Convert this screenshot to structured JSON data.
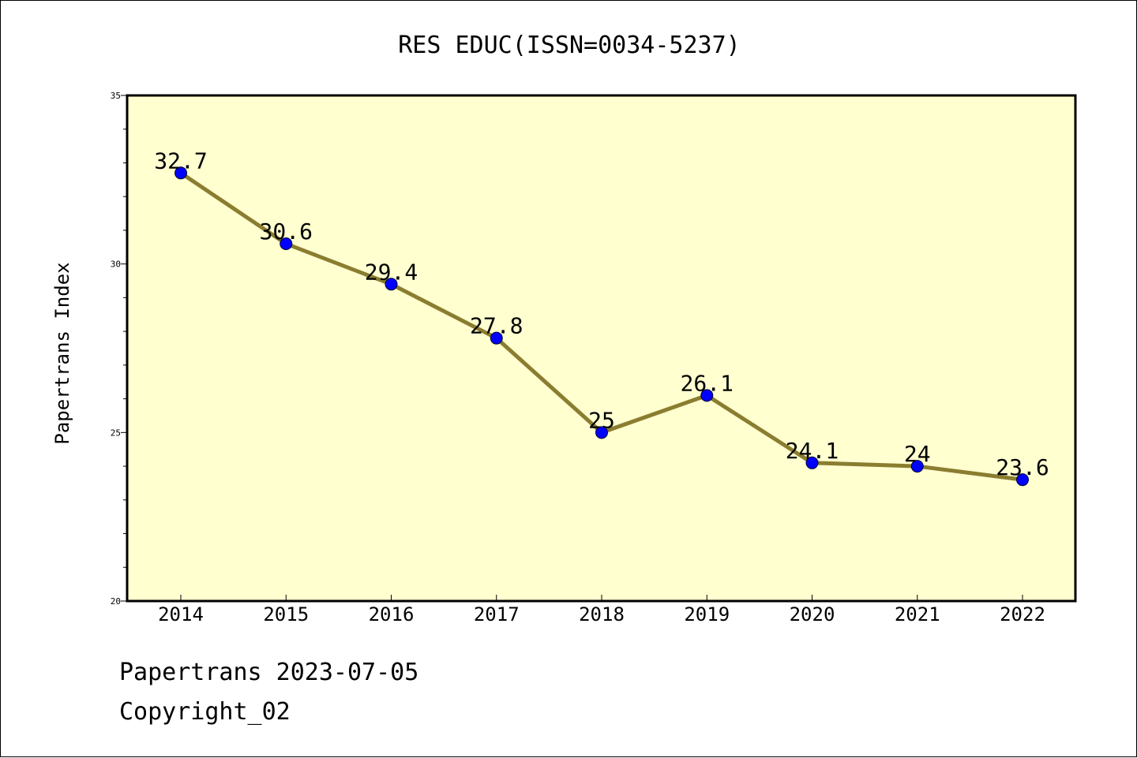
{
  "chart_data": {
    "type": "line",
    "title": "RES EDUC(ISSN=0034-5237)",
    "xlabel": "",
    "ylabel": "Papertrans Index",
    "categories": [
      "2014",
      "2015",
      "2016",
      "2017",
      "2018",
      "2019",
      "2020",
      "2021",
      "2022"
    ],
    "series": [
      {
        "values": [
          32.7,
          30.6,
          29.4,
          27.8,
          25,
          26.1,
          24.1,
          24,
          23.6
        ],
        "labels": [
          "32.7",
          "30.6",
          "29.4",
          "27.8",
          "25",
          "26.1",
          "24.1",
          "24",
          "23.6"
        ]
      }
    ],
    "ylim": [
      20,
      35
    ],
    "yticks": [
      "20",
      "25",
      "30",
      "35"
    ],
    "grid": false,
    "legend": "none",
    "colors": {
      "plot_background": "#ffffd0",
      "line": "#8b7d30",
      "marker": "#0000ff",
      "axis": "#000000"
    }
  },
  "footer": {
    "source": "Papertrans 2023-07-05",
    "copyright": "Copyright_02"
  }
}
